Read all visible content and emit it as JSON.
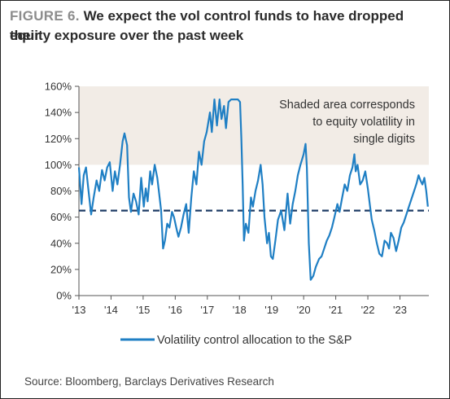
{
  "figure": {
    "label": "FIGURE 6.",
    "title_line1": "We expect the vol control funds to have dropped their",
    "title_line2": "equity exposure over the past week",
    "source": "Source: Bloomberg, Barclays Derivatives Research"
  },
  "colors": {
    "series": "#1f7fc4",
    "shade": "#f2ece6",
    "dashed": "#1f3c66",
    "axis": "#555555"
  },
  "chart_data": {
    "type": "line",
    "title": "",
    "xlabel": "",
    "ylabel": "",
    "x_ticks": [
      "'13",
      "'14",
      "'15",
      "'16",
      "'17",
      "'18",
      "'19",
      "'20",
      "'21",
      "'22",
      "'23"
    ],
    "x_range": [
      2013.0,
      2023.9
    ],
    "ylim": [
      0,
      160
    ],
    "y_ticks": [
      "0%",
      "20%",
      "40%",
      "60%",
      "80%",
      "100%",
      "120%",
      "140%",
      "160%"
    ],
    "y_tick_values": [
      0,
      20,
      40,
      60,
      80,
      100,
      120,
      140,
      160
    ],
    "shaded_band": {
      "from": 100,
      "to": 160
    },
    "annotation_lines": [
      "Shaded area corresponds",
      "to equity volatility in",
      "single digits"
    ],
    "reference_line": {
      "value": 65,
      "style": "dashed"
    },
    "grid": false,
    "legend_position": "bottom",
    "series": [
      {
        "name": "Volatility control allocation to the S&P",
        "points": [
          [
            2013.0,
            98
          ],
          [
            2013.08,
            70
          ],
          [
            2013.15,
            92
          ],
          [
            2013.22,
            98
          ],
          [
            2013.3,
            80
          ],
          [
            2013.38,
            62
          ],
          [
            2013.46,
            75
          ],
          [
            2013.55,
            88
          ],
          [
            2013.63,
            80
          ],
          [
            2013.72,
            96
          ],
          [
            2013.8,
            88
          ],
          [
            2013.88,
            98
          ],
          [
            2013.96,
            102
          ],
          [
            2014.05,
            80
          ],
          [
            2014.12,
            95
          ],
          [
            2014.2,
            85
          ],
          [
            2014.28,
            100
          ],
          [
            2014.36,
            118
          ],
          [
            2014.42,
            124
          ],
          [
            2014.5,
            115
          ],
          [
            2014.56,
            75
          ],
          [
            2014.62,
            64
          ],
          [
            2014.7,
            78
          ],
          [
            2014.78,
            72
          ],
          [
            2014.86,
            62
          ],
          [
            2014.94,
            90
          ],
          [
            2015.02,
            68
          ],
          [
            2015.08,
            82
          ],
          [
            2015.14,
            72
          ],
          [
            2015.22,
            95
          ],
          [
            2015.28,
            85
          ],
          [
            2015.36,
            100
          ],
          [
            2015.44,
            90
          ],
          [
            2015.5,
            78
          ],
          [
            2015.56,
            65
          ],
          [
            2015.62,
            36
          ],
          [
            2015.68,
            42
          ],
          [
            2015.75,
            55
          ],
          [
            2015.82,
            52
          ],
          [
            2015.9,
            64
          ],
          [
            2015.96,
            60
          ],
          [
            2016.05,
            50
          ],
          [
            2016.1,
            45
          ],
          [
            2016.18,
            52
          ],
          [
            2016.26,
            62
          ],
          [
            2016.34,
            70
          ],
          [
            2016.42,
            48
          ],
          [
            2016.5,
            75
          ],
          [
            2016.58,
            95
          ],
          [
            2016.66,
            85
          ],
          [
            2016.74,
            110
          ],
          [
            2016.82,
            100
          ],
          [
            2016.9,
            118
          ],
          [
            2016.98,
            125
          ],
          [
            2017.08,
            140
          ],
          [
            2017.14,
            125
          ],
          [
            2017.22,
            150
          ],
          [
            2017.3,
            130
          ],
          [
            2017.38,
            150
          ],
          [
            2017.44,
            135
          ],
          [
            2017.52,
            145
          ],
          [
            2017.58,
            128
          ],
          [
            2017.66,
            148
          ],
          [
            2017.74,
            150
          ],
          [
            2017.85,
            150
          ],
          [
            2017.95,
            150
          ],
          [
            2018.02,
            148
          ],
          [
            2018.06,
            120
          ],
          [
            2018.1,
            85
          ],
          [
            2018.14,
            42
          ],
          [
            2018.2,
            55
          ],
          [
            2018.28,
            48
          ],
          [
            2018.36,
            75
          ],
          [
            2018.42,
            68
          ],
          [
            2018.5,
            80
          ],
          [
            2018.58,
            88
          ],
          [
            2018.66,
            100
          ],
          [
            2018.72,
            85
          ],
          [
            2018.78,
            60
          ],
          [
            2018.86,
            40
          ],
          [
            2018.92,
            48
          ],
          [
            2018.98,
            30
          ],
          [
            2019.04,
            28
          ],
          [
            2019.12,
            42
          ],
          [
            2019.2,
            58
          ],
          [
            2019.3,
            65
          ],
          [
            2019.4,
            50
          ],
          [
            2019.5,
            78
          ],
          [
            2019.58,
            55
          ],
          [
            2019.66,
            70
          ],
          [
            2019.74,
            80
          ],
          [
            2019.82,
            92
          ],
          [
            2019.9,
            100
          ],
          [
            2020.0,
            108
          ],
          [
            2020.06,
            116
          ],
          [
            2020.1,
            98
          ],
          [
            2020.16,
            40
          ],
          [
            2020.22,
            12
          ],
          [
            2020.3,
            15
          ],
          [
            2020.38,
            22
          ],
          [
            2020.48,
            28
          ],
          [
            2020.56,
            30
          ],
          [
            2020.64,
            36
          ],
          [
            2020.72,
            42
          ],
          [
            2020.8,
            46
          ],
          [
            2020.88,
            52
          ],
          [
            2020.96,
            60
          ],
          [
            2021.05,
            70
          ],
          [
            2021.12,
            64
          ],
          [
            2021.2,
            75
          ],
          [
            2021.28,
            85
          ],
          [
            2021.36,
            80
          ],
          [
            2021.44,
            92
          ],
          [
            2021.52,
            98
          ],
          [
            2021.58,
            108
          ],
          [
            2021.62,
            95
          ],
          [
            2021.68,
            100
          ],
          [
            2021.76,
            85
          ],
          [
            2021.84,
            88
          ],
          [
            2021.92,
            95
          ],
          [
            2022.0,
            82
          ],
          [
            2022.06,
            70
          ],
          [
            2022.12,
            58
          ],
          [
            2022.2,
            50
          ],
          [
            2022.28,
            40
          ],
          [
            2022.36,
            32
          ],
          [
            2022.44,
            30
          ],
          [
            2022.52,
            42
          ],
          [
            2022.6,
            40
          ],
          [
            2022.66,
            36
          ],
          [
            2022.72,
            48
          ],
          [
            2022.8,
            44
          ],
          [
            2022.88,
            34
          ],
          [
            2022.96,
            42
          ],
          [
            2023.04,
            52
          ],
          [
            2023.12,
            56
          ],
          [
            2023.2,
            62
          ],
          [
            2023.28,
            68
          ],
          [
            2023.36,
            74
          ],
          [
            2023.44,
            80
          ],
          [
            2023.52,
            86
          ],
          [
            2023.58,
            92
          ],
          [
            2023.64,
            88
          ],
          [
            2023.7,
            85
          ],
          [
            2023.76,
            90
          ],
          [
            2023.82,
            80
          ],
          [
            2023.87,
            68
          ]
        ]
      }
    ]
  }
}
